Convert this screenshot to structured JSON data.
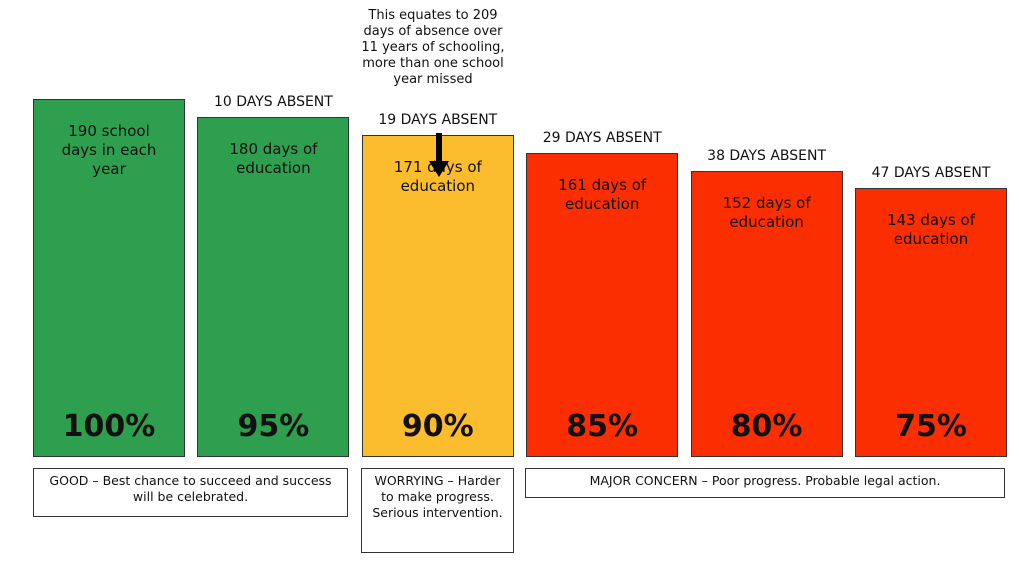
{
  "chart_data": {
    "type": "bar",
    "unit": "%",
    "ylim": [
      0,
      100
    ],
    "bars": [
      {
        "value": 100,
        "percent_label": "100%",
        "description": "190 school days in each year",
        "absent_label": "",
        "color": "#2e9e4f"
      },
      {
        "value": 95,
        "percent_label": "95%",
        "description": "180 days of education",
        "absent_label": "10 DAYS ABSENT",
        "color": "#2e9e4f"
      },
      {
        "value": 90,
        "percent_label": "90%",
        "description": "171 days of education",
        "absent_label": "19 DAYS ABSENT",
        "color": "#fbbd2e"
      },
      {
        "value": 85,
        "percent_label": "85%",
        "description": "161 days of education",
        "absent_label": "29 DAYS ABSENT",
        "color": "#fa2e00"
      },
      {
        "value": 80,
        "percent_label": "80%",
        "description": "152 days of education",
        "absent_label": "38 DAYS ABSENT",
        "color": "#fa2e00"
      },
      {
        "value": 75,
        "percent_label": "75%",
        "description": "143 days of education",
        "absent_label": "47 DAYS ABSENT",
        "color": "#fa2e00"
      }
    ],
    "annotation": "This equates to 209 days of absence over 11 years of schooling, more than one school year missed",
    "categories": [
      {
        "label": "GOOD – Best chance to succeed and success will be celebrated.",
        "bars": [
          0,
          1
        ]
      },
      {
        "label": "WORRYING – Harder to make progress. Serious intervention.",
        "bars": [
          2
        ]
      },
      {
        "label": "MAJOR CONCERN – Poor progress. Probable legal action.",
        "bars": [
          3,
          4,
          5
        ]
      }
    ]
  }
}
